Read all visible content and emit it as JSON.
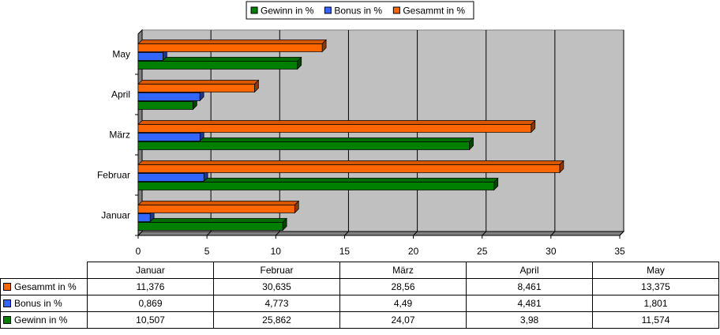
{
  "chart_data": {
    "type": "bar",
    "orientation": "horizontal",
    "three_d": true,
    "categories": [
      "Januar",
      "Februar",
      "März",
      "April",
      "May"
    ],
    "series": [
      {
        "name": "Gewinn in %",
        "color": "#008000",
        "values": [
          10.507,
          25.862,
          24.07,
          3.98,
          11.574
        ]
      },
      {
        "name": "Bonus in %",
        "color": "#3366ff",
        "values": [
          0.869,
          4.773,
          4.49,
          4.481,
          1.801
        ]
      },
      {
        "name": "Gesammt in %",
        "color": "#ff6600",
        "values": [
          11.376,
          30.635,
          28.56,
          8.461,
          13.375
        ]
      }
    ],
    "xlim": [
      0,
      35
    ],
    "xticks": [
      "0",
      "5",
      "10",
      "15",
      "20",
      "25",
      "30",
      "35"
    ],
    "grid": true,
    "plot_background": "#c0c0c0",
    "legend_position": "top",
    "legend": [
      "Gewinn in %",
      "Bonus in %",
      "Gesammt in %"
    ]
  },
  "data_table": {
    "columns": [
      "Januar",
      "Februar",
      "März",
      "April",
      "May"
    ],
    "rows": [
      {
        "label": "Gesammt in %",
        "color": "#ff6600",
        "values": [
          "11,376",
          "30,635",
          "28,56",
          "8,461",
          "13,375"
        ]
      },
      {
        "label": "Bonus in %",
        "color": "#3366ff",
        "values": [
          "0,869",
          "4,773",
          "4,49",
          "4,481",
          "1,801"
        ]
      },
      {
        "label": "Gewinn in %",
        "color": "#008000",
        "values": [
          "10,507",
          "25,862",
          "24,07",
          "3,98",
          "11,574"
        ]
      }
    ]
  }
}
